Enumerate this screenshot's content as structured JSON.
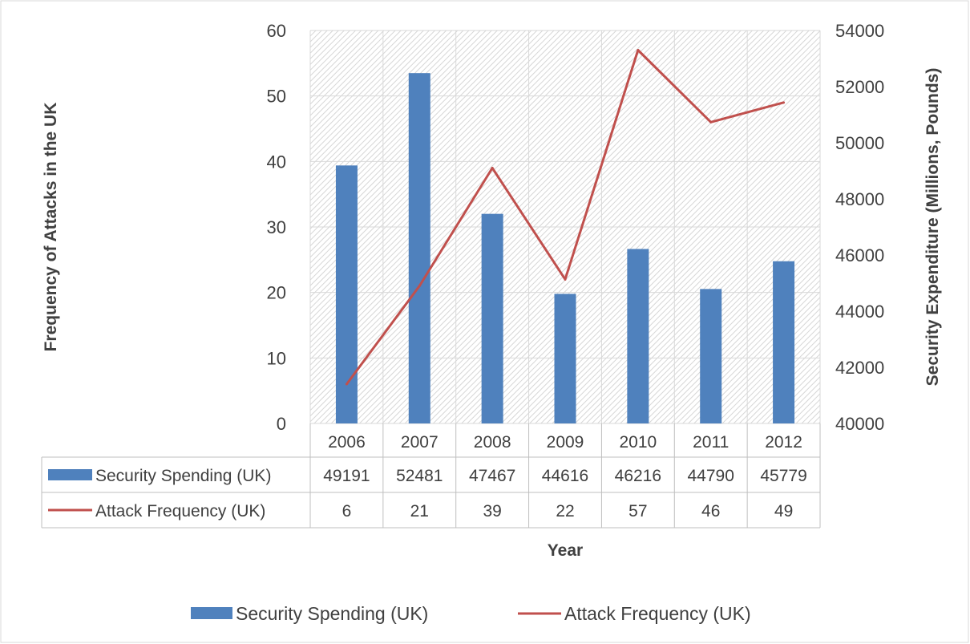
{
  "chart_data": {
    "type": "bar",
    "categories": [
      "2006",
      "2007",
      "2008",
      "2009",
      "2010",
      "2011",
      "2012"
    ],
    "series": [
      {
        "name": "Security Spending (UK)",
        "kind": "bar",
        "axis": "right",
        "color": "#4f81bd",
        "values": [
          49191,
          52481,
          47467,
          44616,
          46216,
          44790,
          45779
        ]
      },
      {
        "name": "Attack Frequency (UK)",
        "kind": "line",
        "axis": "left",
        "color": "#c0504d",
        "values": [
          6,
          21,
          39,
          22,
          57,
          46,
          49
        ]
      }
    ],
    "xlabel": "Year",
    "ylabel_left": "Frequency of Attacks in the UK",
    "ylabel_right": "Security Expenditure (Millions, Pounds)",
    "ylim_left": [
      0,
      60
    ],
    "ylim_right": [
      40000,
      54000
    ],
    "yticks_left": [
      "0",
      "10",
      "20",
      "30",
      "40",
      "50",
      "60"
    ],
    "yticks_right": [
      "40000",
      "42000",
      "44000",
      "46000",
      "48000",
      "50000",
      "52000",
      "54000"
    ],
    "grid": true,
    "data_table": true,
    "legend_position": "bottom"
  }
}
